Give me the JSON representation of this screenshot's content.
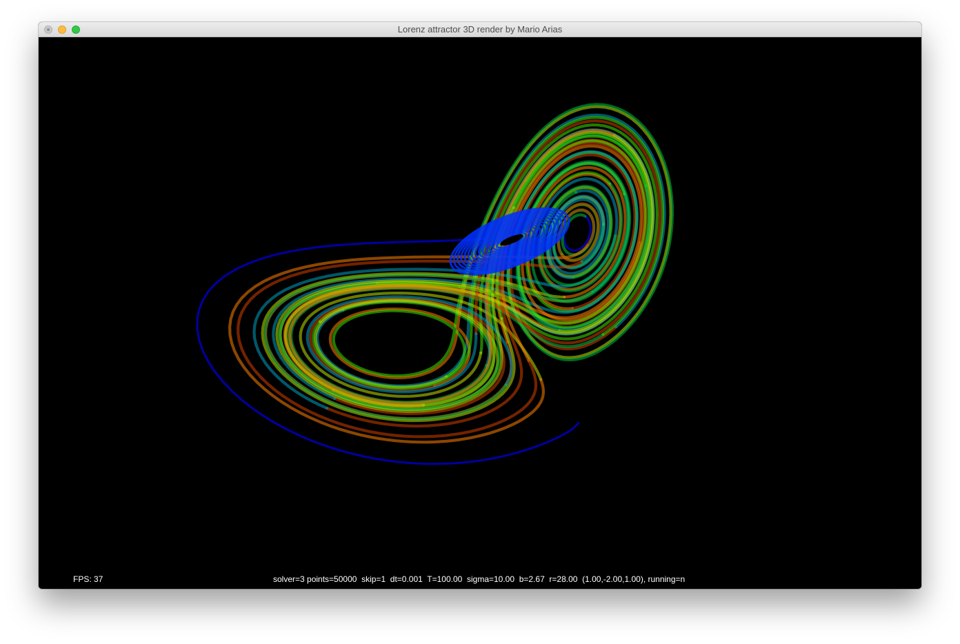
{
  "window": {
    "title": "Lorenz attractor 3D render by Mario Arias",
    "controls": {
      "close": "close-icon",
      "minimize": "minimize-icon",
      "zoom": "zoom-icon"
    }
  },
  "overlay": {
    "fps": "FPS: 37",
    "status": "solver=3 points=50000  skip=1  dt=0.001  T=100.00  sigma=10.00  b=2.67  r=28.00  (1.00,-2.00,1.00), running=n"
  },
  "colors": {
    "background": "#000000",
    "trail_start": "#0000cc",
    "core": "#0030ff",
    "palette": [
      "#00c040",
      "#40e000",
      "#c0e000",
      "#ff8000",
      "#d04000",
      "#00a0c0"
    ]
  }
}
